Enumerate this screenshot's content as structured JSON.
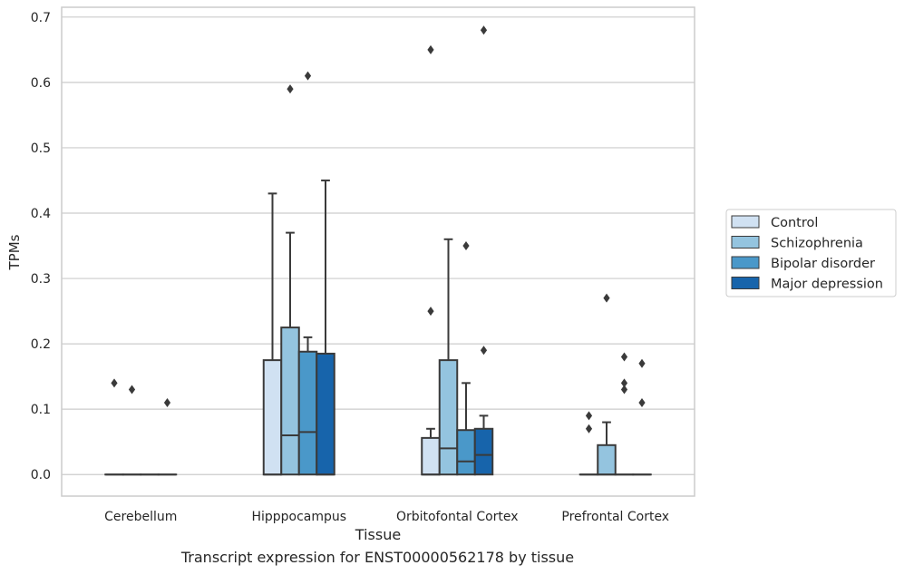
{
  "caption": "Transcript expression for ENST00000562178 by tissue",
  "chart_data": {
    "type": "boxplot",
    "xlabel": "Tissue",
    "ylabel": "TPMs",
    "ylim": [
      -0.033,
      0.715
    ],
    "yticks": [
      0.0,
      0.1,
      0.2,
      0.3,
      0.4,
      0.5,
      0.6,
      0.7
    ],
    "ytick_labels": [
      "0.0",
      "0.1",
      "0.2",
      "0.3",
      "0.4",
      "0.5",
      "0.6",
      "0.7"
    ],
    "grid": "horizontal",
    "legend_position": "right",
    "categories": [
      "Cerebellum",
      "Hipppocampus",
      "Orbitofontal Cortex",
      "Prefrontal Cortex"
    ],
    "series": [
      {
        "name": "Control",
        "color": "#d0e1f2",
        "boxes": [
          {
            "q1": 0,
            "median": 0,
            "q3": 0,
            "whisker_low": 0,
            "whisker_high": 0,
            "outliers": [
              0.14
            ]
          },
          {
            "q1": 0,
            "median": 0,
            "q3": 0.175,
            "whisker_low": 0,
            "whisker_high": 0.43,
            "outliers": []
          },
          {
            "q1": 0,
            "median": 0,
            "q3": 0.056,
            "whisker_low": 0,
            "whisker_high": 0.07,
            "outliers": [
              0.25,
              0.65
            ]
          },
          {
            "q1": 0,
            "median": 0,
            "q3": 0,
            "whisker_low": 0,
            "whisker_high": 0,
            "outliers": [
              0.07,
              0.09
            ]
          }
        ]
      },
      {
        "name": "Schizophrenia",
        "color": "#94c4df",
        "boxes": [
          {
            "q1": 0,
            "median": 0,
            "q3": 0,
            "whisker_low": 0,
            "whisker_high": 0,
            "outliers": [
              0.13
            ]
          },
          {
            "q1": 0,
            "median": 0.06,
            "q3": 0.225,
            "whisker_low": 0,
            "whisker_high": 0.37,
            "outliers": [
              0.59
            ]
          },
          {
            "q1": 0,
            "median": 0.04,
            "q3": 0.175,
            "whisker_low": 0,
            "whisker_high": 0.36,
            "outliers": []
          },
          {
            "q1": 0,
            "median": 0,
            "q3": 0.045,
            "whisker_low": 0,
            "whisker_high": 0.08,
            "outliers": [
              0.27
            ]
          }
        ]
      },
      {
        "name": "Bipolar disorder",
        "color": "#4a98c9",
        "boxes": [
          {
            "q1": 0,
            "median": 0,
            "q3": 0,
            "whisker_low": 0,
            "whisker_high": 0,
            "outliers": []
          },
          {
            "q1": 0,
            "median": 0.065,
            "q3": 0.188,
            "whisker_low": 0,
            "whisker_high": 0.21,
            "outliers": [
              0.61
            ]
          },
          {
            "q1": 0,
            "median": 0.02,
            "q3": 0.068,
            "whisker_low": 0,
            "whisker_high": 0.14,
            "outliers": [
              0.35
            ]
          },
          {
            "q1": 0,
            "median": 0,
            "q3": 0,
            "whisker_low": 0,
            "whisker_high": 0,
            "outliers": [
              0.13,
              0.14,
              0.18
            ]
          }
        ]
      },
      {
        "name": "Major depression",
        "color": "#1764ab",
        "boxes": [
          {
            "q1": 0,
            "median": 0,
            "q3": 0,
            "whisker_low": 0,
            "whisker_high": 0,
            "outliers": [
              0.11
            ]
          },
          {
            "q1": 0,
            "median": 0,
            "q3": 0.185,
            "whisker_low": 0,
            "whisker_high": 0.45,
            "outliers": []
          },
          {
            "q1": 0,
            "median": 0.03,
            "q3": 0.07,
            "whisker_low": 0,
            "whisker_high": 0.09,
            "outliers": [
              0.19,
              0.68
            ]
          },
          {
            "q1": 0,
            "median": 0,
            "q3": 0,
            "whisker_low": 0,
            "whisker_high": 0,
            "outliers": [
              0.11,
              0.17
            ]
          }
        ]
      }
    ]
  }
}
